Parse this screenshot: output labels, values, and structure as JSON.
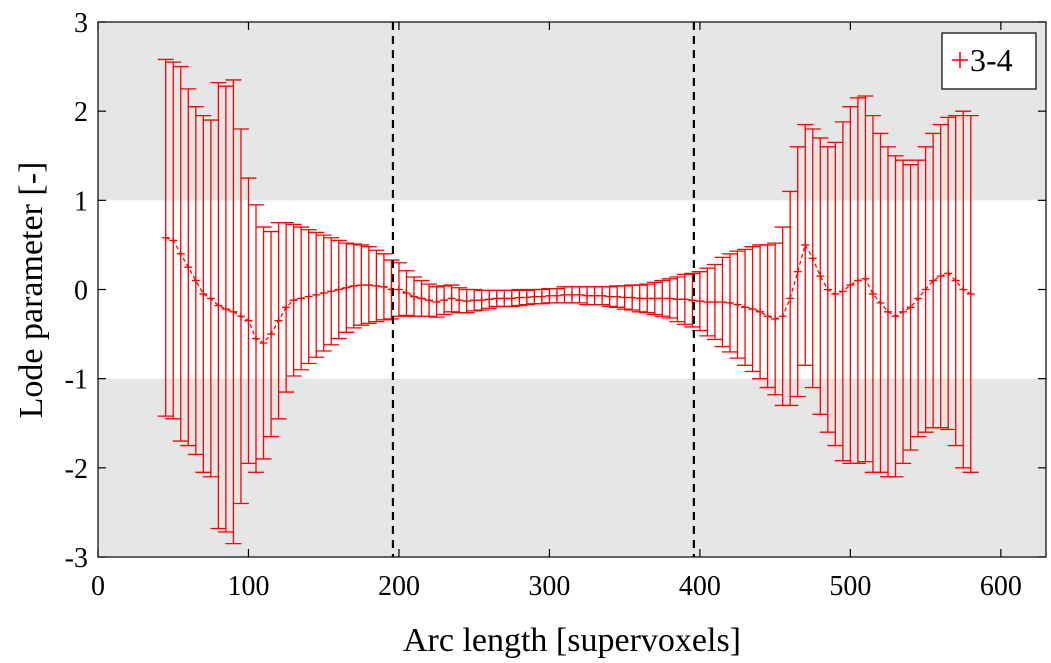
{
  "chart_data": {
    "type": "line",
    "title": "",
    "xlabel": "Arc length [supervoxels]",
    "ylabel": "Lode parameter [-]",
    "xlim": [
      0,
      630
    ],
    "ylim": [
      -3,
      3
    ],
    "xticks": [
      0,
      100,
      200,
      300,
      400,
      500,
      600
    ],
    "yticks": [
      -3,
      -2,
      -1,
      0,
      1,
      2,
      3
    ],
    "xtick_labels": [
      "0",
      "100",
      "200",
      "300",
      "400",
      "500",
      "600"
    ],
    "ytick_labels": [
      "-3",
      "-2",
      "-1",
      "0",
      "1",
      "2",
      "3"
    ],
    "shaded_bands": [
      [
        1,
        3
      ],
      [
        -3,
        -1
      ]
    ],
    "band_color": "#e6e6e6",
    "vlines": [
      196,
      396
    ],
    "legend": {
      "position": "top-right",
      "label": "3-4"
    },
    "series": [
      {
        "name": "3-4",
        "color": "#ff0000",
        "x": [
          45,
          50,
          55,
          60,
          65,
          70,
          75,
          80,
          85,
          90,
          95,
          100,
          105,
          110,
          115,
          120,
          125,
          130,
          135,
          140,
          145,
          150,
          155,
          160,
          165,
          170,
          175,
          180,
          185,
          190,
          195,
          200,
          205,
          210,
          215,
          220,
          225,
          230,
          235,
          240,
          245,
          250,
          255,
          260,
          265,
          270,
          275,
          280,
          285,
          290,
          295,
          300,
          305,
          310,
          315,
          320,
          325,
          330,
          335,
          340,
          345,
          350,
          355,
          360,
          365,
          370,
          375,
          380,
          385,
          390,
          395,
          400,
          405,
          410,
          415,
          420,
          425,
          430,
          435,
          440,
          445,
          450,
          455,
          460,
          465,
          470,
          475,
          480,
          485,
          490,
          495,
          500,
          505,
          510,
          515,
          520,
          525,
          530,
          535,
          540,
          545,
          550,
          555,
          560,
          565,
          570,
          575,
          580
        ],
        "y": [
          0.58,
          0.55,
          0.4,
          0.25,
          0.1,
          -0.05,
          -0.1,
          -0.18,
          -0.22,
          -0.25,
          -0.3,
          -0.35,
          -0.55,
          -0.6,
          -0.5,
          -0.35,
          -0.2,
          -0.12,
          -0.1,
          -0.08,
          -0.06,
          -0.04,
          -0.02,
          0,
          0.02,
          0.04,
          0.05,
          0.05,
          0.04,
          0.03,
          0,
          0,
          -0.04,
          -0.08,
          -0.1,
          -0.12,
          -0.14,
          -0.12,
          -0.1,
          -0.12,
          -0.13,
          -0.12,
          -0.12,
          -0.11,
          -0.1,
          -0.1,
          -0.1,
          -0.09,
          -0.09,
          -0.08,
          -0.08,
          -0.07,
          -0.07,
          -0.06,
          -0.06,
          -0.06,
          -0.07,
          -0.07,
          -0.07,
          -0.08,
          -0.08,
          -0.09,
          -0.09,
          -0.1,
          -0.1,
          -0.1,
          -0.1,
          -0.1,
          -0.11,
          -0.11,
          -0.12,
          -0.13,
          -0.14,
          -0.14,
          -0.14,
          -0.15,
          -0.17,
          -0.2,
          -0.22,
          -0.25,
          -0.3,
          -0.33,
          -0.3,
          -0.1,
          0.2,
          0.5,
          0.35,
          0.15,
          0,
          -0.05,
          -0.02,
          0.05,
          0.1,
          0.12,
          -0.05,
          -0.15,
          -0.25,
          -0.3,
          -0.25,
          -0.2,
          -0.1,
          0,
          0.1,
          0.15,
          0.18,
          0.1,
          0,
          -0.05
        ],
        "y_err": [
          2.0,
          2.0,
          2.1,
          2.0,
          1.95,
          2.0,
          2.0,
          2.5,
          2.5,
          2.6,
          2.1,
          1.6,
          1.5,
          1.3,
          1.15,
          1.1,
          0.95,
          0.85,
          0.8,
          0.75,
          0.7,
          0.65,
          0.6,
          0.55,
          0.5,
          0.47,
          0.45,
          0.43,
          0.4,
          0.37,
          0.33,
          0.3,
          0.25,
          0.22,
          0.2,
          0.18,
          0.17,
          0.16,
          0.15,
          0.14,
          0.13,
          0.12,
          0.11,
          0.1,
          0.09,
          0.09,
          0.09,
          0.09,
          0.08,
          0.08,
          0.08,
          0.08,
          0.08,
          0.09,
          0.09,
          0.09,
          0.1,
          0.1,
          0.1,
          0.11,
          0.12,
          0.13,
          0.14,
          0.15,
          0.16,
          0.18,
          0.2,
          0.22,
          0.25,
          0.28,
          0.3,
          0.33,
          0.38,
          0.42,
          0.5,
          0.55,
          0.6,
          0.65,
          0.7,
          0.75,
          0.8,
          0.85,
          1.0,
          1.2,
          1.4,
          1.35,
          1.45,
          1.55,
          1.6,
          1.7,
          1.9,
          2.0,
          2.05,
          2.05,
          2.0,
          1.9,
          1.85,
          1.8,
          1.7,
          1.6,
          1.55,
          1.6,
          1.65,
          1.7,
          1.75,
          1.85,
          2.0,
          2.0
        ]
      }
    ]
  }
}
